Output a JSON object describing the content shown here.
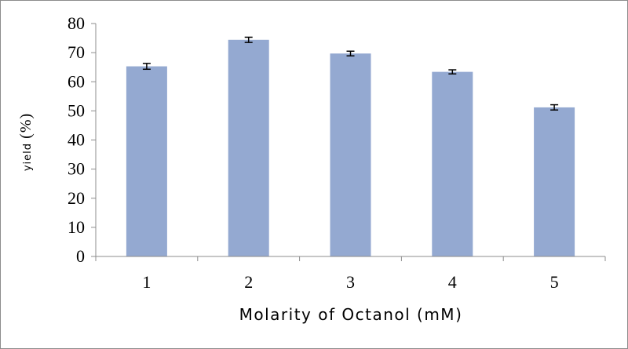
{
  "chart_data": {
    "type": "bar",
    "categories": [
      "1",
      "2",
      "3",
      "4",
      "5"
    ],
    "values": [
      65.3,
      74.4,
      69.7,
      63.4,
      51.2
    ],
    "errors": [
      1.0,
      0.9,
      0.8,
      0.7,
      0.9
    ],
    "title": "",
    "xlabel": "Molarity of Octanol (mM)",
    "ylabel": "yield (%)",
    "ylim": [
      0,
      80
    ],
    "yticks": [
      "0",
      "10",
      "20",
      "30",
      "40",
      "50",
      "60",
      "70",
      "80"
    ],
    "grid": false,
    "legend": "none",
    "bar_color": "#94a9d1",
    "errorbar_color": "#000000"
  }
}
